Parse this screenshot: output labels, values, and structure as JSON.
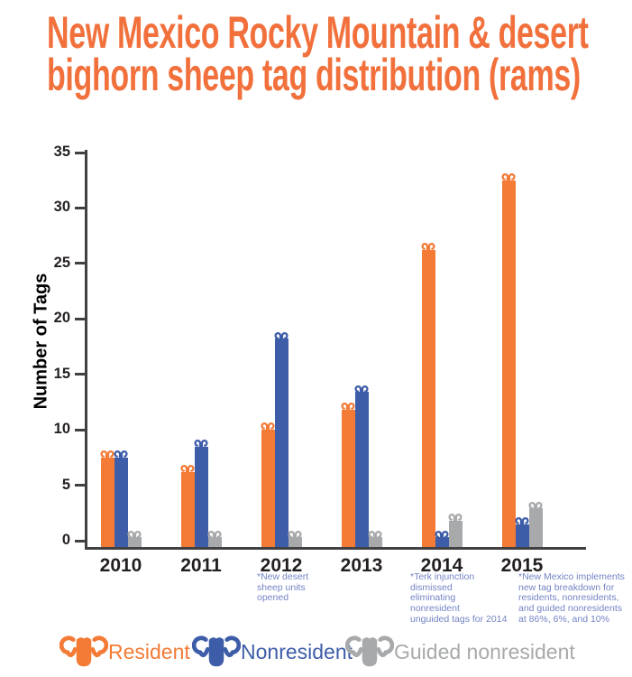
{
  "title": {
    "line1": "New Mexico Rocky Mountain & desert",
    "line2": "bighorn sheep tag distribution (rams)"
  },
  "colors": {
    "title": "#F1703C",
    "axis": "#414042",
    "tick_label": "#231F20",
    "annotation": "#7484C5"
  },
  "chart_data": {
    "type": "bar",
    "title": "New Mexico Rocky Mountain & desert bighorn sheep tag distribution (rams)",
    "xlabel": "",
    "ylabel": "Number of Tags",
    "ylim": [
      0,
      35
    ],
    "yticks": [
      0,
      5,
      10,
      15,
      20,
      25,
      30,
      35
    ],
    "grid": false,
    "legend_position": "bottom",
    "categories": [
      "2010",
      "2011",
      "2012",
      "2013",
      "2014",
      "2015"
    ],
    "series": [
      {
        "name": "Resident",
        "color": "#F37B36",
        "values": [
          7.5,
          6.2,
          10,
          11.8,
          26.2,
          32.5
        ]
      },
      {
        "name": "Nonresident",
        "color": "#3E5DA9",
        "values": [
          7.5,
          8.5,
          18.2,
          13.4,
          0.3,
          1.5
        ]
      },
      {
        "name": "Guided nonresident",
        "color": "#A7A9AB",
        "values": [
          0.3,
          0.3,
          0.3,
          0.3,
          1.8,
          2.9
        ]
      }
    ],
    "annotations": [
      {
        "category": "2012",
        "text": "*New desert\nsheep units\nopened"
      },
      {
        "category": "2014",
        "text": "*Terk injunction\ndismissed\neliminating\nnonresident\nunguided tags for 2014"
      },
      {
        "category": "2015",
        "text": "*New Mexico implements\nnew tag breakdown for\nresidents, nonresidents,\nand guided nonresidents\nat 86%, 6%, and 10%"
      }
    ]
  }
}
